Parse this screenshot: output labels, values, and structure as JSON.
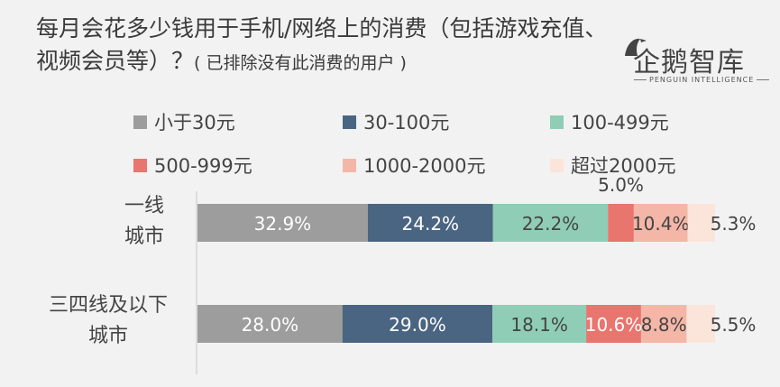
{
  "title": "每月会花多少钱用于手机/网络上的消费（包括游戏充值、视频会员等）？",
  "subtitle": "( 已排除没有此消费的用户 )",
  "logo": {
    "name": "企鹅智库",
    "tagline": "PENGUIN INTELLIGENCE"
  },
  "colors": {
    "lt30": "#9d9d9d",
    "30_100": "#4a6582",
    "100_499": "#8fcdb6",
    "500_999": "#e8756e",
    "1000_2000": "#f4b6a7",
    "gt2000": "#fbe5da"
  },
  "chart_data": {
    "type": "bar",
    "orientation": "horizontal-stacked",
    "title": "每月会花多少钱用于手机/网络上的消费（包括游戏充值、视频会员等）？( 已排除没有此消费的用户 )",
    "categories": [
      "一线城市",
      "三四线及以下城市"
    ],
    "category_lines": [
      [
        "一线",
        "城市"
      ],
      [
        "三四线及以下",
        "城市"
      ]
    ],
    "series": [
      {
        "name": "小于30元",
        "key": "lt30",
        "values": [
          32.9,
          28.0
        ],
        "labels": [
          "32.9%",
          "28.0%"
        ]
      },
      {
        "name": "30-100元",
        "key": "30_100",
        "values": [
          24.2,
          29.0
        ],
        "labels": [
          "24.2%",
          "29.0%"
        ]
      },
      {
        "name": "100-499元",
        "key": "100_499",
        "values": [
          22.2,
          18.1
        ],
        "labels": [
          "22.2%",
          "18.1%"
        ]
      },
      {
        "name": "500-999元",
        "key": "500_999",
        "values": [
          5.0,
          10.6
        ],
        "labels": [
          "5.0%",
          "10.6%"
        ]
      },
      {
        "name": "1000-2000元",
        "key": "1000_2000",
        "values": [
          10.4,
          8.8
        ],
        "labels": [
          "10.4%",
          "8.8%"
        ]
      },
      {
        "name": "超过2000元",
        "key": "gt2000",
        "values": [
          5.3,
          5.5
        ],
        "labels": [
          "5.3%",
          "5.5%"
        ]
      }
    ],
    "xlim": [
      0,
      100
    ],
    "legend": "top",
    "grid": false
  }
}
